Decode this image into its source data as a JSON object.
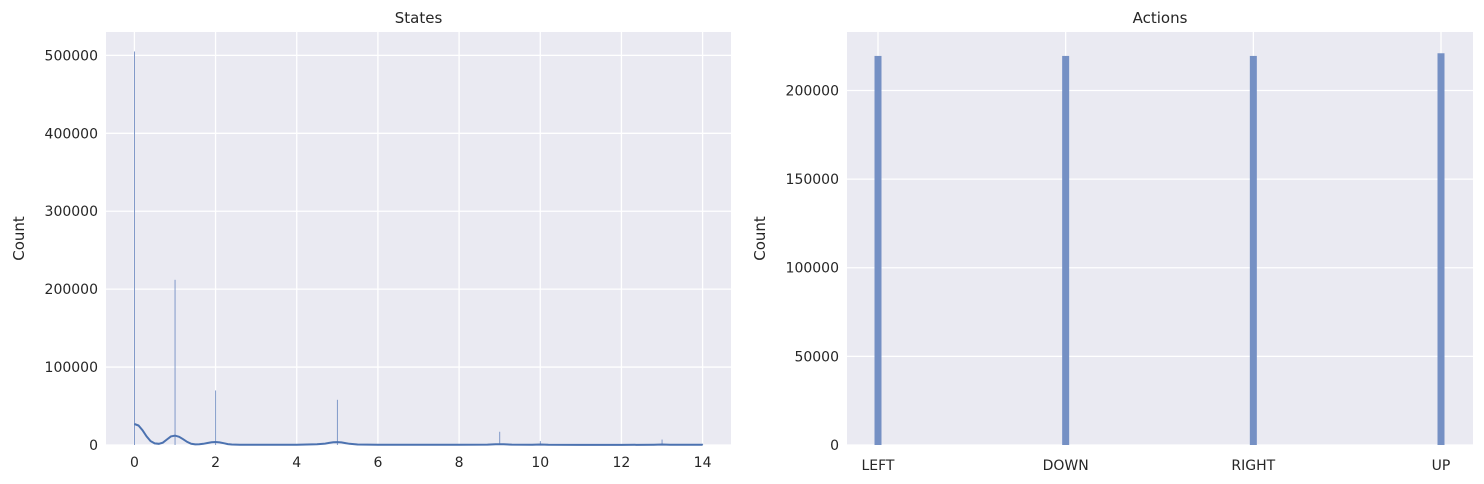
{
  "chart_data": [
    {
      "type": "histogram",
      "title": "States",
      "xlabel": "",
      "ylabel": "Count",
      "xlim": [
        -0.7,
        14.7
      ],
      "ylim": [
        0,
        530000
      ],
      "x_ticks": [
        0,
        2,
        4,
        6,
        8,
        10,
        12,
        14
      ],
      "y_ticks": [
        0,
        100000,
        200000,
        300000,
        400000,
        500000
      ],
      "grid": true,
      "bars": [
        {
          "x": 0,
          "value": 505000
        },
        {
          "x": 1,
          "value": 212000
        },
        {
          "x": 2,
          "value": 70000
        },
        {
          "x": 5,
          "value": 58000
        },
        {
          "x": 9,
          "value": 17000
        },
        {
          "x": 10,
          "value": 5000
        },
        {
          "x": 13,
          "value": 7000
        },
        {
          "x": 14,
          "value": 1500
        }
      ],
      "kde": {
        "x": [
          0,
          0.1,
          0.2,
          0.3,
          0.4,
          0.5,
          0.6,
          0.7,
          0.8,
          0.9,
          1.0,
          1.1,
          1.2,
          1.3,
          1.4,
          1.5,
          1.6,
          1.7,
          1.8,
          1.9,
          2.0,
          2.1,
          2.2,
          2.3,
          2.4,
          2.6,
          3.0,
          3.5,
          4.0,
          4.5,
          4.7,
          4.8,
          4.9,
          5.0,
          5.1,
          5.2,
          5.3,
          5.5,
          6.0,
          7.0,
          8.0,
          8.7,
          8.9,
          9.0,
          9.1,
          9.3,
          9.8,
          10.0,
          10.2,
          11.0,
          12.0,
          12.8,
          13.0,
          13.2,
          14.0
        ],
        "y": [
          27000,
          25000,
          19000,
          11000,
          5000,
          2000,
          1500,
          3000,
          7000,
          11000,
          12000,
          10500,
          7500,
          4000,
          1600,
          800,
          900,
          1600,
          2600,
          3500,
          3800,
          3300,
          2300,
          1200,
          600,
          300,
          200,
          200,
          300,
          900,
          1800,
          2700,
          3500,
          3700,
          3400,
          2500,
          1500,
          600,
          250,
          200,
          250,
          500,
          900,
          1000,
          900,
          500,
          300,
          600,
          300,
          150,
          150,
          400,
          600,
          400,
          200
        ]
      }
    },
    {
      "type": "bar",
      "title": "Actions",
      "xlabel": "",
      "ylabel": "Count",
      "categories": [
        "LEFT",
        "DOWN",
        "RIGHT",
        "UP"
      ],
      "values": [
        219500,
        219500,
        219500,
        221000
      ],
      "ylim": [
        0,
        233000
      ],
      "y_ticks": [
        0,
        50000,
        100000,
        150000,
        200000
      ],
      "grid": true
    }
  ]
}
